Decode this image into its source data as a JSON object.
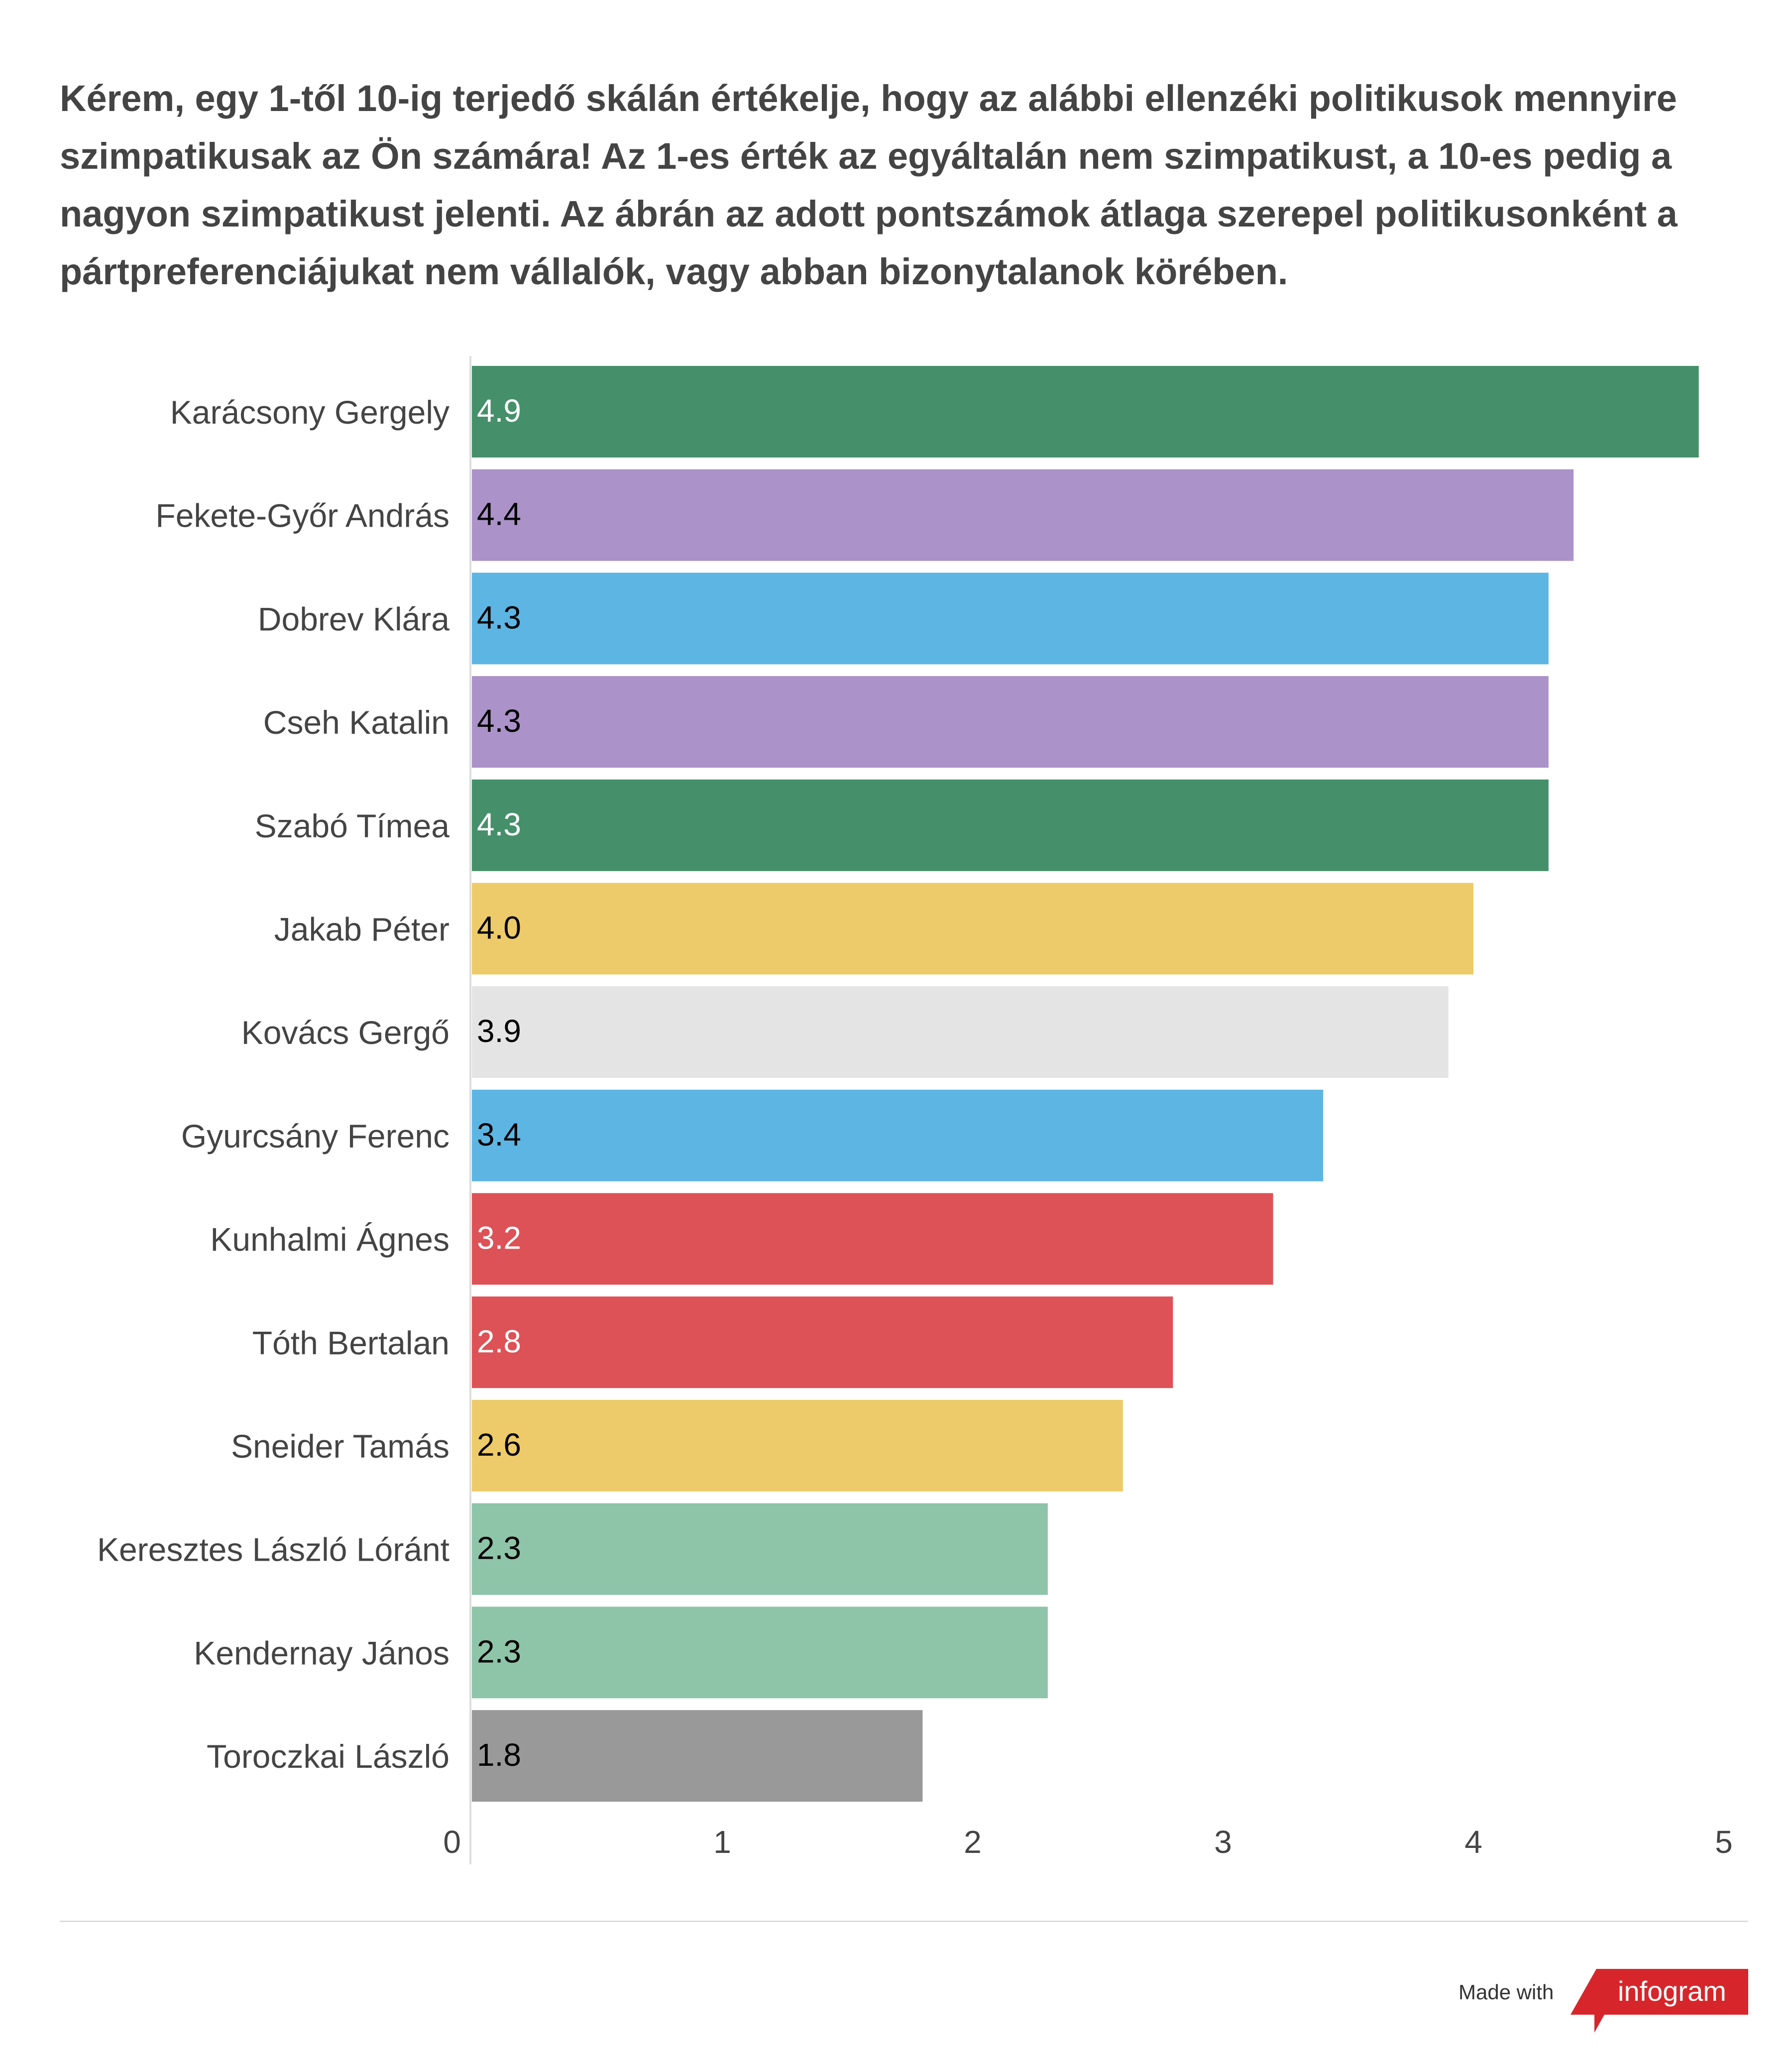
{
  "title": "Kérem, egy 1-től 10-ig terjedő skálán értékelje, hogy az alábbi ellenzéki politikusok mennyire szimpatikusak az Ön számára! Az 1-es érték az egyáltalán nem szimpatikust, a 10-es pedig a nagyon szimpatikust jelenti. Az ábrán az adott pontszámok átlaga szerepel politikusonként a pártpreferenciájukat nem vállalók, vagy abban bizonytalanok körében.",
  "chart_data": {
    "type": "bar",
    "orientation": "horizontal",
    "categories": [
      "Karácsony Gergely",
      "Fekete-Győr András",
      "Dobrev Klára",
      "Cseh Katalin",
      "Szabó Tímea",
      "Jakab Péter",
      "Kovács Gergő",
      "Gyurcsány Ferenc",
      "Kunhalmi Ágnes",
      "Tóth Bertalan",
      "Sneider Tamás",
      "Keresztes László Lóránt",
      "Kendernay János",
      "Toroczkai László"
    ],
    "values": [
      4.9,
      4.4,
      4.3,
      4.3,
      4.3,
      4.0,
      3.9,
      3.4,
      3.2,
      2.8,
      2.6,
      2.3,
      2.3,
      1.8
    ],
    "labels": [
      "4.9",
      "4.4",
      "4.3",
      "4.3",
      "4.3",
      "4.0",
      "3.9",
      "3.4",
      "3.2",
      "2.8",
      "2.6",
      "2.3",
      "2.3",
      "1.8"
    ],
    "colors": [
      "#45906a",
      "#ab92c8",
      "#5db5e3",
      "#ab92c8",
      "#45906a",
      "#edcb6a",
      "#e4e4e4",
      "#5db5e3",
      "#dd5257",
      "#dd5257",
      "#edcb6a",
      "#8ec4a8",
      "#8ec4a8",
      "#999999"
    ],
    "label_colors": [
      "#ffffff",
      "#000000",
      "#000000",
      "#000000",
      "#ffffff",
      "#000000",
      "#000000",
      "#000000",
      "#ffffff",
      "#ffffff",
      "#000000",
      "#000000",
      "#000000",
      "#000000"
    ],
    "xlim": [
      0,
      5
    ],
    "xticks": [
      "0",
      "1",
      "2",
      "3",
      "4",
      "5"
    ],
    "xlabel": "",
    "ylabel": "",
    "grid": false
  },
  "footer": {
    "made_with": "Made with",
    "brand": "infogram",
    "brand_color": "#d7262b"
  }
}
